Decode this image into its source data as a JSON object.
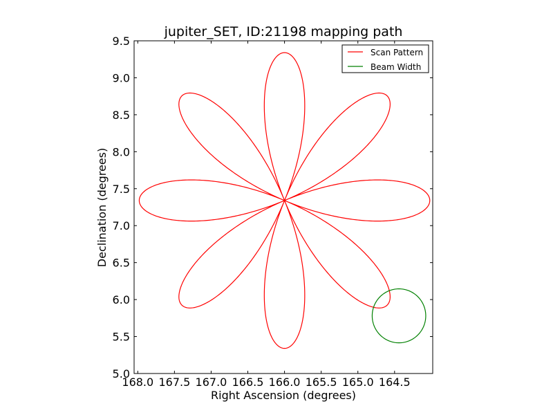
{
  "chart_data": {
    "type": "line",
    "title": "jupiter_SET, ID:21198 mapping path",
    "xlabel": "Right Ascension (degrees)",
    "ylabel": "Declination (degrees)",
    "xlim": [
      168.05,
      163.98
    ],
    "ylim": [
      5.0,
      9.5
    ],
    "x_inverted": true,
    "xticks": [
      168.0,
      167.5,
      167.0,
      166.5,
      166.0,
      165.5,
      165.0,
      164.5
    ],
    "xtick_labels": [
      "168.0",
      "167.5",
      "167.0",
      "166.5",
      "166.0",
      "165.5",
      "165.0",
      "164.5"
    ],
    "yticks": [
      5.0,
      5.5,
      6.0,
      6.5,
      7.0,
      7.5,
      8.0,
      8.5,
      9.0,
      9.5
    ],
    "ytick_labels": [
      "5.0",
      "5.5",
      "6.0",
      "6.5",
      "7.0",
      "7.5",
      "8.0",
      "8.5",
      "9.0",
      "9.5"
    ],
    "grid": false,
    "legend_position": "top-right",
    "series": [
      {
        "name": "Scan Pattern",
        "color": "#ff0000",
        "kind": "rose",
        "center": [
          166.0,
          7.34
        ],
        "petals": 8,
        "petal_length_ra": 1.98,
        "petal_length_dec": 2.0
      },
      {
        "name": "Beam Width",
        "color": "#008000",
        "kind": "circle",
        "center": [
          164.44,
          5.78
        ],
        "radius_ra": 0.365,
        "radius_dec": 0.365
      }
    ]
  }
}
